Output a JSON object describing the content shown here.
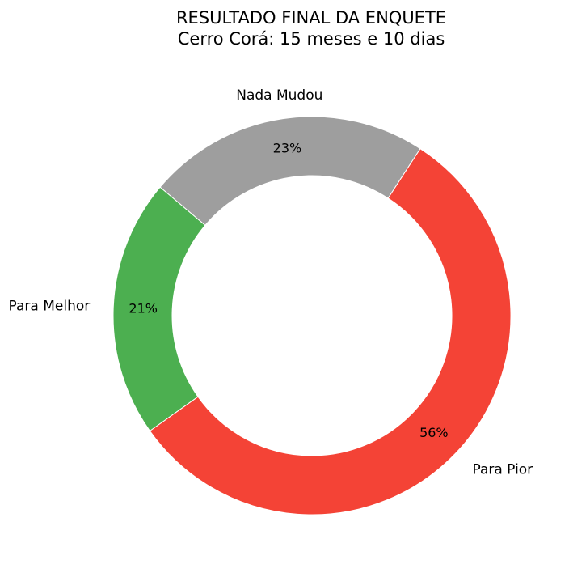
{
  "chart_data": {
    "type": "pie",
    "donut": true,
    "title": "RESULTADO FINAL DA ENQUETE",
    "subtitle": "Cerro Corá: 15 meses e 10 dias",
    "categories": [
      "Nada Mudou",
      "Para Melhor",
      "Para Pior"
    ],
    "values": [
      23,
      21,
      56
    ],
    "value_labels": [
      "23%",
      "21%",
      "56%"
    ],
    "colors": [
      "#9e9e9e",
      "#4caf50",
      "#f44336"
    ],
    "start_angle_deg": 57,
    "direction": "counterclockwise",
    "legend": "none"
  }
}
